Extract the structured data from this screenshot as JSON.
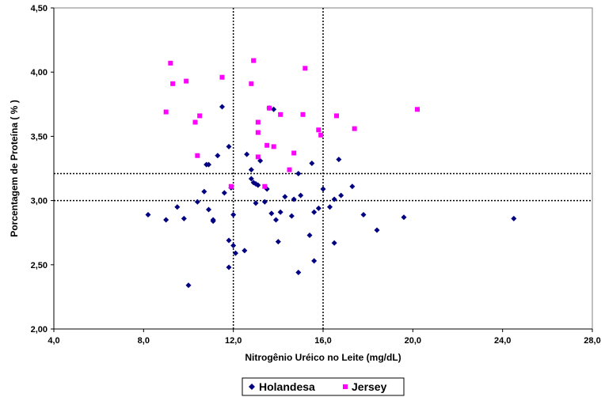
{
  "chart_data": {
    "type": "scatter",
    "xlabel": "Nitrogênio Uréico no Leite (mg/dL)",
    "ylabel": "Porcentagem de Proteína ( % )",
    "xlim": [
      4.0,
      28.0
    ],
    "ylim": [
      2.0,
      4.5
    ],
    "x_ticks": [
      "4,0",
      "8,0",
      "12,0",
      "16,0",
      "20,0",
      "24,0",
      "28,0"
    ],
    "y_ticks": [
      "2,00",
      "2,50",
      "3,00",
      "3,50",
      "4,00",
      "4,50"
    ],
    "grid": false,
    "legend": "bottom",
    "reference_lines": {
      "vertical_x": [
        12.0,
        16.0
      ],
      "horizontal_y": [
        3.0,
        3.21
      ],
      "style": "dotted",
      "color": "#000000"
    },
    "series": [
      {
        "name": "Holandesa",
        "color": "#000080",
        "marker": "diamond",
        "points": [
          [
            8.2,
            2.89
          ],
          [
            9.0,
            2.85
          ],
          [
            9.5,
            2.95
          ],
          [
            9.8,
            2.86
          ],
          [
            10.0,
            2.34
          ],
          [
            10.4,
            2.99
          ],
          [
            10.7,
            3.07
          ],
          [
            10.8,
            3.28
          ],
          [
            10.9,
            3.28
          ],
          [
            10.9,
            2.93
          ],
          [
            11.1,
            2.85
          ],
          [
            11.1,
            2.84
          ],
          [
            11.3,
            3.35
          ],
          [
            11.5,
            3.73
          ],
          [
            11.6,
            3.06
          ],
          [
            11.8,
            3.42
          ],
          [
            11.8,
            2.69
          ],
          [
            11.8,
            2.48
          ],
          [
            11.9,
            3.1
          ],
          [
            12.0,
            2.89
          ],
          [
            12.0,
            2.65
          ],
          [
            12.1,
            2.59
          ],
          [
            12.5,
            2.61
          ],
          [
            12.6,
            3.36
          ],
          [
            12.8,
            3.24
          ],
          [
            12.8,
            3.17
          ],
          [
            12.9,
            3.14
          ],
          [
            13.0,
            3.13
          ],
          [
            13.0,
            2.98
          ],
          [
            13.1,
            3.12
          ],
          [
            13.2,
            3.31
          ],
          [
            13.4,
            2.99
          ],
          [
            13.5,
            3.09
          ],
          [
            13.6,
            3.72
          ],
          [
            13.7,
            2.9
          ],
          [
            13.8,
            3.71
          ],
          [
            13.9,
            2.85
          ],
          [
            14.0,
            2.68
          ],
          [
            14.1,
            2.91
          ],
          [
            14.3,
            3.03
          ],
          [
            14.6,
            2.88
          ],
          [
            14.7,
            3.01
          ],
          [
            14.9,
            3.21
          ],
          [
            14.9,
            2.44
          ],
          [
            15.0,
            3.04
          ],
          [
            15.4,
            2.73
          ],
          [
            15.5,
            3.29
          ],
          [
            15.6,
            2.91
          ],
          [
            15.6,
            2.53
          ],
          [
            15.8,
            2.94
          ],
          [
            16.0,
            3.09
          ],
          [
            16.3,
            2.95
          ],
          [
            16.5,
            3.01
          ],
          [
            16.5,
            2.67
          ],
          [
            16.7,
            3.32
          ],
          [
            16.8,
            3.04
          ],
          [
            17.3,
            3.11
          ],
          [
            17.8,
            2.89
          ],
          [
            18.4,
            2.77
          ],
          [
            19.6,
            2.87
          ],
          [
            24.5,
            2.86
          ]
        ]
      },
      {
        "name": "Jersey",
        "color": "#ff00ff",
        "marker": "square",
        "points": [
          [
            9.0,
            3.69
          ],
          [
            9.2,
            4.07
          ],
          [
            9.3,
            3.91
          ],
          [
            9.9,
            3.93
          ],
          [
            10.3,
            3.61
          ],
          [
            10.4,
            3.35
          ],
          [
            10.5,
            3.66
          ],
          [
            11.5,
            3.96
          ],
          [
            11.9,
            3.11
          ],
          [
            12.8,
            3.91
          ],
          [
            12.9,
            4.09
          ],
          [
            13.1,
            3.61
          ],
          [
            13.1,
            3.53
          ],
          [
            13.1,
            3.34
          ],
          [
            13.4,
            3.11
          ],
          [
            13.5,
            3.43
          ],
          [
            13.6,
            3.72
          ],
          [
            13.8,
            3.42
          ],
          [
            14.1,
            3.67
          ],
          [
            14.5,
            3.24
          ],
          [
            14.7,
            3.37
          ],
          [
            15.1,
            3.67
          ],
          [
            15.2,
            4.03
          ],
          [
            15.8,
            3.55
          ],
          [
            15.9,
            3.51
          ],
          [
            16.6,
            3.66
          ],
          [
            17.4,
            3.56
          ],
          [
            20.2,
            3.71
          ]
        ]
      }
    ]
  }
}
